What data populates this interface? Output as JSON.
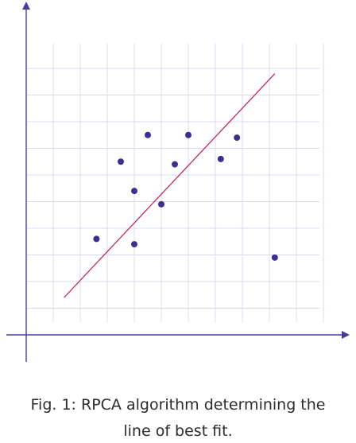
{
  "caption": {
    "line1": "Fig. 1: RPCA algorithm determining the",
    "line2": "line of best fit."
  },
  "colors": {
    "axis": "#4b3a9c",
    "grid": "#dcd8f2",
    "points": "#3b2f8f",
    "fit_line": "#c2185b"
  },
  "chart_data": {
    "type": "scatter",
    "title": "",
    "xlabel": "",
    "ylabel": "",
    "xlim": [
      0,
      12
    ],
    "ylim": [
      0,
      10
    ],
    "grid": true,
    "series": [
      {
        "points": [
          {
            "x": 2.6,
            "y": 3.6
          },
          {
            "x": 3.5,
            "y": 6.5
          },
          {
            "x": 4.0,
            "y": 3.4
          },
          {
            "x": 4.0,
            "y": 5.4
          },
          {
            "x": 4.5,
            "y": 7.5
          },
          {
            "x": 5.0,
            "y": 4.9
          },
          {
            "x": 5.5,
            "y": 6.4
          },
          {
            "x": 6.0,
            "y": 7.5
          },
          {
            "x": 7.2,
            "y": 6.6
          },
          {
            "x": 7.8,
            "y": 7.4
          },
          {
            "x": 9.2,
            "y": 2.9
          }
        ]
      }
    ],
    "fit_line": {
      "x1": 1.4,
      "y1": 1.4,
      "x2": 9.2,
      "y2": 9.8
    }
  }
}
